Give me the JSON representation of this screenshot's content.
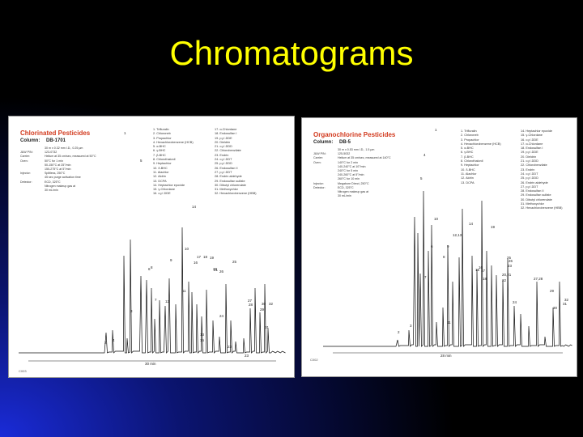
{
  "slide": {
    "title": "Chromatograms",
    "title_color": "#ffff00"
  },
  "left_panel": {
    "title": "Chlorinated Pesticides",
    "column_label": "Column:",
    "column_value": "DB-1701",
    "conditions": [
      [
        "",
        "30 m x 0.32 mm I.D., 0.25 µm"
      ],
      [
        "J&W P/N:",
        "123-0732"
      ],
      [
        "Carrier:",
        "Helium at 35 cm/sec, measured at 50°C"
      ],
      [
        "Oven:",
        "50°C for 1 min"
      ],
      [
        "",
        "50-150°C at 25°/min"
      ],
      [
        "",
        "150-275°C at 5°/min"
      ],
      [
        "Injector:",
        "Splitless, 250°C"
      ],
      [
        "",
        "45 sec purge activation time"
      ],
      [
        "Detector:",
        "ECD, 325°C"
      ],
      [
        "",
        "Nitrogen makeup gas at"
      ],
      [
        "",
        "30 mL/min"
      ]
    ],
    "peaks_col1": [
      "1. Trifluralin",
      "2. Chloroneb",
      "3. Propachlor",
      "4. Hexachlorobenzene (HCB)",
      "5. α-BHC",
      "6. γ-BHC",
      "7. β-BHC",
      "8. Chlorothalonil",
      "9. Heptachlor",
      "10. δ-BHC",
      "11. Alachlor",
      "12. Aldrin",
      "13. DCPA",
      "14. Heptachlor epoxide",
      "15. γ-Chlordane",
      "16. o,p'-DDE"
    ],
    "peaks_col2": [
      "17. α-Chlordane",
      "18. Endosulfan I",
      "19. p,p'-DDE",
      "20. Dieldrin",
      "21. o,p'-DDD",
      "22. Chlorobenzilate",
      "23. Endrin",
      "24. o,p'-DDT",
      "25. p,p'-DDD",
      "26. Endosulfan II",
      "27. p,p'-DDT",
      "28. Endrin aldehyde",
      "29. Endosulfan sulfate",
      "30. Dibutyl chlorendate",
      "31. Methoxychlor",
      "32. Hexachlorobenzene (HBB)"
    ],
    "peak_labels": [
      "1",
      "2",
      "3",
      "4",
      "5",
      "6",
      "7",
      "8",
      "9",
      "10",
      "11",
      "12",
      "13",
      "14",
      "15",
      "16",
      "17",
      "18",
      "19",
      "20",
      "21",
      "22",
      "23",
      "24",
      "25",
      "26",
      "27",
      "28",
      "29",
      "30",
      "31",
      "32"
    ],
    "time_axis": "30 min",
    "code": "C003"
  },
  "right_panel": {
    "title": "Organochlorine Pesticides",
    "column_label": "Column:",
    "column_value": "DB-5",
    "conditions": [
      [
        "",
        "30 m x 0.53 mm I.D., 1.5 µm"
      ],
      [
        "J&W P/N:",
        "125-5032"
      ],
      [
        "Carrier:",
        "Helium at 35 cm/sec, measured at 140°C"
      ],
      [
        "Oven:",
        "140°C for 2 min"
      ],
      [
        "",
        "140-240°C at 10°/min"
      ],
      [
        "",
        "240°C for 5 min"
      ],
      [
        "",
        "240-260°C at 5°/min"
      ],
      [
        "",
        "260°C for 10 min"
      ],
      [
        "Injector:",
        "Megabore Direct, 250°C"
      ],
      [
        "Detector:",
        "ECD, 325°C"
      ],
      [
        "",
        "Nitrogen makeup gas at"
      ],
      [
        "",
        "30 mL/min"
      ]
    ],
    "peaks_col1": [
      "1. Trifluralin",
      "2. Chloroneb",
      "3. Propachlor",
      "4. Hexachlorobenzene (HCB)",
      "5. α-BHC",
      "6. γ-BHC",
      "7. β-BHC",
      "8. Chlorothalonil",
      "9. Heptachlor",
      "10. δ-BHC",
      "11. Alachlor",
      "12. Aldrin",
      "13. DCPA"
    ],
    "peaks_col2": [
      "14. Heptachlor epoxide",
      "15. γ-Chlordane",
      "16. o,p'-DDE",
      "17. α-Chlordane",
      "18. Endosulfan I",
      "19. p,p'-DDE",
      "20. Dieldrin",
      "21. o,p'-DDD",
      "22. Chlorobenzilate",
      "23. Endrin",
      "24. o,p'-DDT",
      "25. p,p'-DDD",
      "26. Endrin aldehyde",
      "27. p,p'-DDT",
      "28. Endosulfan II",
      "29. Endosulfan sulfate",
      "30. Dibutyl chlorendate",
      "31. Methoxychlor",
      "32. Hexachlorobenzene (HBB)"
    ],
    "peak_labels": [
      "1",
      "2",
      "3",
      "4",
      "5",
      "6",
      "7",
      "8",
      "9",
      "10",
      "11",
      "12,13",
      "14",
      "15",
      "16",
      "17",
      "18",
      "19",
      "20,21",
      "22",
      "23",
      "24",
      "25",
      "26",
      "27,28",
      "29",
      "30",
      "31",
      "32"
    ],
    "time_axis": "28 min",
    "code": "C002"
  }
}
